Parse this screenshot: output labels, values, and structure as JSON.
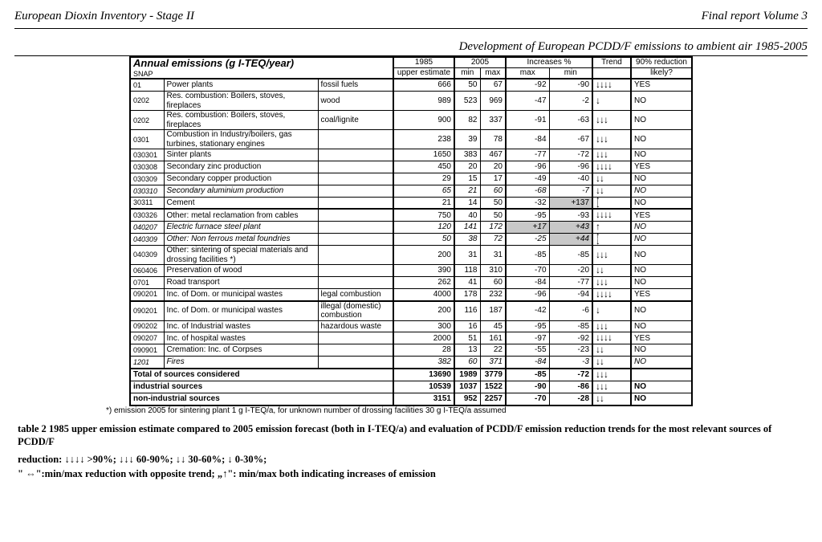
{
  "header": {
    "left": "European Dioxin Inventory - Stage II",
    "right": "Final report Volume 3"
  },
  "subtitle": "Development of European PCDD/F emissions to ambient air 1985-2005",
  "table": {
    "title": "Annual emissions (g I-TEQ/year)",
    "snap_label": "SNAP",
    "col_1985": "1985",
    "col_1985_sub": "upper estimate",
    "col_2005": "2005",
    "col_2005_min": "min",
    "col_2005_max": "max",
    "col_inc": "Increases %",
    "col_inc_max": "max",
    "col_inc_min": "min",
    "col_trend": "Trend",
    "col_90": "90% reduction",
    "col_90_sub": "likely?"
  },
  "rows": [
    {
      "snap": "01",
      "src": "Power plants",
      "sub": "fossil fuels",
      "e85": "666",
      "mn": "50",
      "mx": "67",
      "imax": "-92",
      "imin": "-90",
      "tr": "↓↓↓↓",
      "l": "YES"
    },
    {
      "snap": "0202",
      "src": "Res. combustion: Boilers, stoves, fireplaces",
      "sub": "wood",
      "e85": "989",
      "mn": "523",
      "mx": "969",
      "imax": "-47",
      "imin": "-2",
      "tr": "↓",
      "l": "NO"
    },
    {
      "snap": "0202",
      "src": "Res. combustion: Boilers, stoves, fireplaces",
      "sub": "coal/lignite",
      "e85": "900",
      "mn": "82",
      "mx": "337",
      "imax": "-91",
      "imin": "-63",
      "tr": "↓↓↓",
      "l": "NO"
    },
    {
      "snap": "0301",
      "src": "Combustion in Industry/boilers, gas turbines, stationary engines",
      "sub": "",
      "e85": "238",
      "mn": "39",
      "mx": "78",
      "imax": "-84",
      "imin": "-67",
      "tr": "↓↓↓",
      "l": "NO"
    },
    {
      "snap": "030301",
      "src": "Sinter plants",
      "sub": "",
      "e85": "1650",
      "mn": "383",
      "mx": "467",
      "imax": "-77",
      "imin": "-72",
      "tr": "↓↓↓",
      "l": "NO"
    },
    {
      "snap": "030308",
      "src": "Secondary zinc production",
      "sub": "",
      "e85": "450",
      "mn": "20",
      "mx": "20",
      "imax": "-96",
      "imin": "-96",
      "tr": "↓↓↓↓",
      "l": "YES"
    },
    {
      "snap": "030309",
      "src": "Secondary copper production",
      "sub": "",
      "e85": "29",
      "mn": "15",
      "mx": "17",
      "imax": "-49",
      "imin": "-40",
      "tr": "↓↓",
      "l": "NO"
    },
    {
      "snap": "030310",
      "src": "Secondary aluminium production",
      "sub": "",
      "e85": "65",
      "mn": "21",
      "mx": "60",
      "imax": "-68",
      "imin": "-7",
      "tr": "↓↓",
      "l": "NO",
      "it": true
    },
    {
      "snap": "30311",
      "src": "Cement",
      "sub": "",
      "e85": "21",
      "mn": "14",
      "mx": "50",
      "imax": "-32",
      "imin": "+137",
      "tr": "⇔",
      "l": "NO",
      "hl_min": true,
      "gap": true
    },
    {
      "snap": "030326",
      "src": "Other: metal reclamation from cables",
      "sub": "",
      "e85": "750",
      "mn": "40",
      "mx": "50",
      "imax": "-95",
      "imin": "-93",
      "tr": "↓↓↓↓",
      "l": "YES"
    },
    {
      "snap": "040207",
      "src": "Electric furnace steel plant",
      "sub": "",
      "e85": "120",
      "mn": "141",
      "mx": "172",
      "imax": "+17",
      "imin": "+43",
      "tr": "↑",
      "l": "NO",
      "it": true,
      "hl_max": true,
      "hl_min": true
    },
    {
      "snap": "040309",
      "src": "Other:  Non ferrous metal foundries",
      "sub": "",
      "e85": "50",
      "mn": "38",
      "mx": "72",
      "imax": "-25",
      "imin": "+44",
      "tr": "⇔",
      "l": "NO",
      "it": true,
      "hl_min": true
    },
    {
      "snap": "040309",
      "src": "Other: sintering of special materials and drossing facilities *)",
      "sub": "",
      "e85": "200",
      "mn": "31",
      "mx": "31",
      "imax": "-85",
      "imin": "-85",
      "tr": "↓↓↓",
      "l": "NO"
    },
    {
      "snap": "060406",
      "src": "Preservation of wood",
      "sub": "",
      "e85": "390",
      "mn": "118",
      "mx": "310",
      "imax": "-70",
      "imin": "-20",
      "tr": "↓↓",
      "l": "NO"
    },
    {
      "snap": "0701",
      "src": "Road transport",
      "sub": "",
      "e85": "262",
      "mn": "41",
      "mx": "60",
      "imax": "-84",
      "imin": "-77",
      "tr": "↓↓↓",
      "l": "NO"
    },
    {
      "snap": "090201",
      "src": "Inc. of Dom. or municipal wastes",
      "sub": "legal combustion",
      "e85": "4000",
      "mn": "178",
      "mx": "232",
      "imax": "-96",
      "imin": "-94",
      "tr": "↓↓↓↓",
      "l": "YES",
      "gap": true
    },
    {
      "snap": "090201",
      "src": "Inc. of Dom. or municipal wastes",
      "sub": "illegal (domestic) combustion",
      "e85": "200",
      "mn": "116",
      "mx": "187",
      "imax": "-42",
      "imin": "-6",
      "tr": "↓",
      "l": "NO"
    },
    {
      "snap": "090202",
      "src": "Inc. of Industrial wastes",
      "sub": "hazardous waste",
      "e85": "300",
      "mn": "16",
      "mx": "45",
      "imax": "-95",
      "imin": "-85",
      "tr": "↓↓↓",
      "l": "NO"
    },
    {
      "snap": "090207",
      "src": "Inc. of hospital wastes",
      "sub": "",
      "e85": "2000",
      "mn": "51",
      "mx": "161",
      "imax": "-97",
      "imin": "-92",
      "tr": "↓↓↓↓",
      "l": "YES"
    },
    {
      "snap": "090901",
      "src": "Cremation: Inc. of Corpses",
      "sub": "",
      "e85": "28",
      "mn": "13",
      "mx": "22",
      "imax": "-55",
      "imin": "-23",
      "tr": "↓↓",
      "l": "NO"
    },
    {
      "snap": "1201",
      "src": "Fires",
      "sub": "",
      "e85": "382",
      "mn": "60",
      "mx": "371",
      "imax": "-84",
      "imin": "-3",
      "tr": "↓↓",
      "l": "NO",
      "it": true
    }
  ],
  "totals": [
    {
      "label": "Total of sources considered",
      "e85": "13690",
      "mn": "1989",
      "mx": "3779",
      "imax": "-85",
      "imin": "-72",
      "tr": "↓↓↓"
    },
    {
      "label": "industrial sources",
      "e85": "10539",
      "mn": "1037",
      "mx": "1522",
      "imax": "-90",
      "imin": "-86",
      "tr": "↓↓↓",
      "l": "NO"
    },
    {
      "label": "non-industrial sources",
      "e85": "3151",
      "mn": "952",
      "mx": "2257",
      "imax": "-70",
      "imin": "-28",
      "tr": "↓↓",
      "l": "NO"
    }
  ],
  "footnote": "*) emission 2005 for sintering plant 1 g I-TEQ/a, for unknown number of drossing facilities 30 g I-TEQ/a assumed",
  "caption": "table 2 1985 upper emission estimate compared to 2005 emission forecast (both in I-TEQ/a) and evaluation of PCDD/F emission reduction trends for the most relevant sources of PCDD/F",
  "legend1": "reduction: ↓↓↓↓ >90%; ↓↓↓ 60-90%; ↓↓ 30-60%; ↓ 0-30%;",
  "legend2": "\" ⇔\":min/max reduction with opposite trend; „↑\": min/max both indicating increases of emission"
}
